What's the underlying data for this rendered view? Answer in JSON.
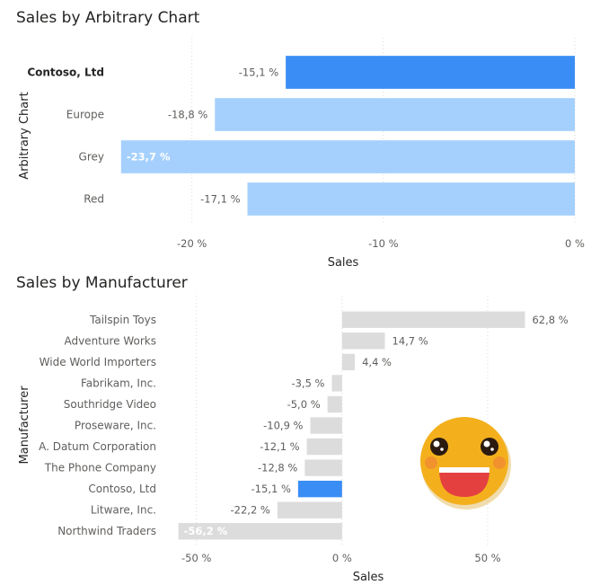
{
  "colors": {
    "highlight": "#3a8df5",
    "light_blue": "#a5d0fd",
    "grey": "#dcdcdc",
    "emoji_face": "#f3b01c",
    "emoji_mouth": "#e44040",
    "emoji_cheek": "#f07f3c"
  },
  "decoration": {
    "emoji_icon": "grinning-face-emoji"
  },
  "chart_data": [
    {
      "type": "bar",
      "orientation": "horizontal",
      "title": "Sales by Arbitrary Chart",
      "xlabel": "Sales",
      "ylabel": "Arbitrary Chart",
      "categories": [
        "Contoso, Ltd",
        "Europe",
        "Grey",
        "Red"
      ],
      "values": [
        -15.1,
        -18.8,
        -23.7,
        -17.1
      ],
      "value_labels": [
        "-15,1 %",
        "-18,8 %",
        "-23,7 %",
        "-17,1 %"
      ],
      "highlighted": "Contoso, Ltd",
      "xlim": [
        -22.8,
        0
      ],
      "xticks": [
        -20,
        -10,
        0
      ],
      "xtick_labels": [
        "-20 %",
        "-10 %",
        "0 %"
      ],
      "grid": true
    },
    {
      "type": "bar",
      "orientation": "horizontal",
      "title": "Sales by Manufacturer",
      "xlabel": "Sales",
      "ylabel": "Manufacturer",
      "categories": [
        "Tailspin Toys",
        "Adventure Works",
        "Wide World Importers",
        "Fabrikam, Inc.",
        "Southridge Video",
        "Proseware, Inc.",
        "A. Datum Corporation",
        "The Phone Company",
        "Contoso, Ltd",
        "Litware, Inc.",
        "Northwind Traders"
      ],
      "values": [
        62.8,
        14.7,
        4.4,
        -3.5,
        -5.0,
        -10.9,
        -12.1,
        -12.8,
        -15.1,
        -22.2,
        -56.2
      ],
      "value_labels": [
        "62,8 %",
        "14,7 %",
        "4,4 %",
        "-3,5 %",
        "-5,0 %",
        "-10,9 %",
        "-12,1 %",
        "-12,8 %",
        "-15,1 %",
        "-22,2 %",
        "-56,2 %"
      ],
      "highlighted": "Contoso, Ltd",
      "xlim": [
        -57,
        83
      ],
      "xticks": [
        -50,
        0,
        50
      ],
      "xtick_labels": [
        "-50 %",
        "0 %",
        "50 %"
      ],
      "grid": true
    }
  ]
}
